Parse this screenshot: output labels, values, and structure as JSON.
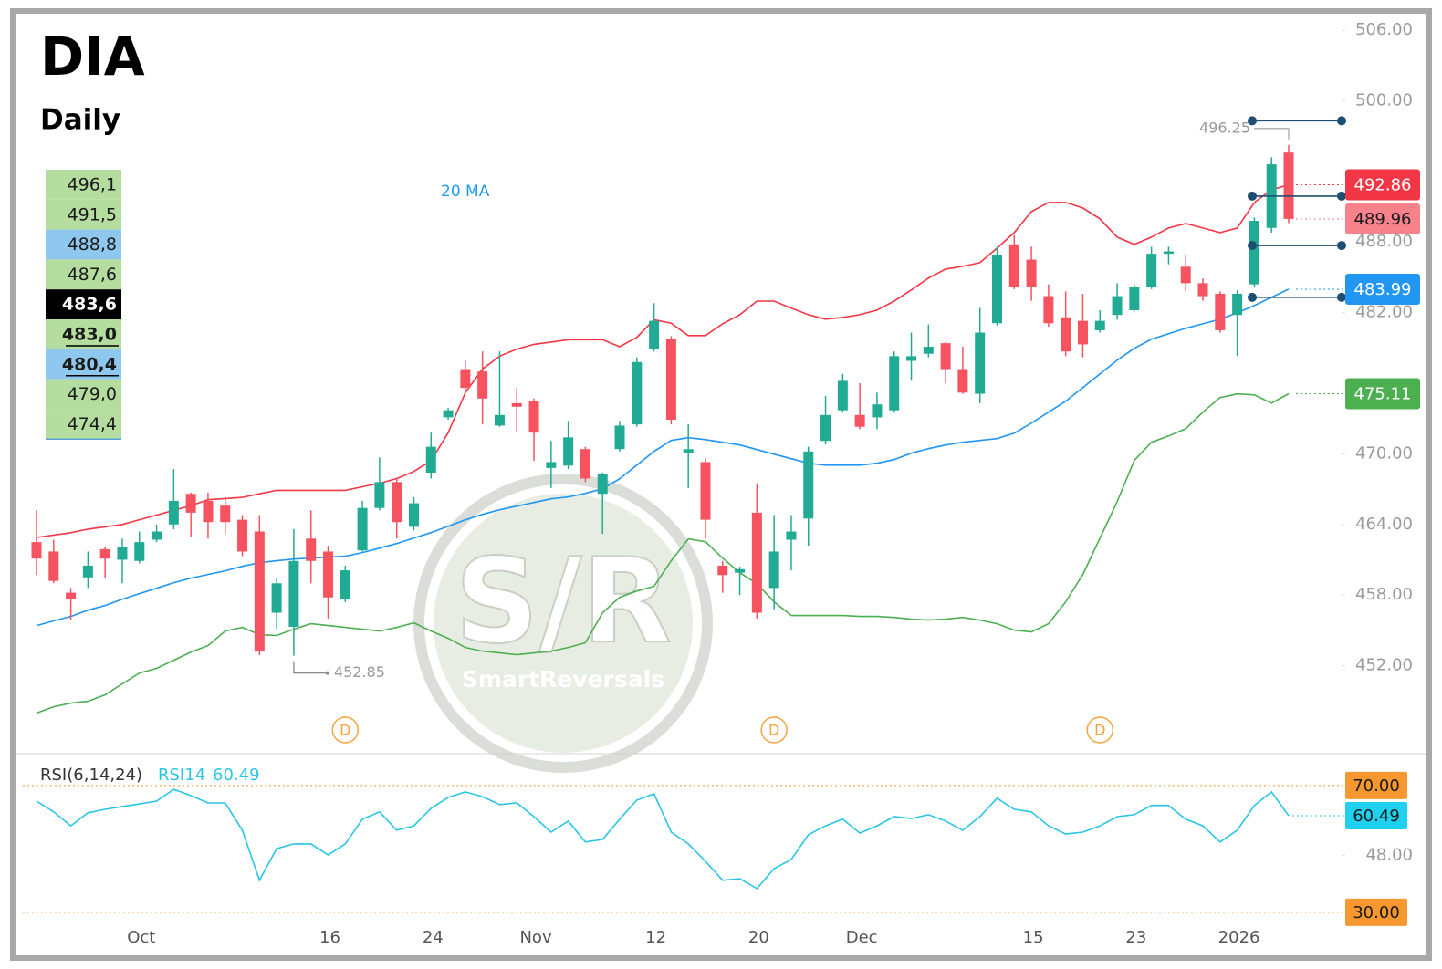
{
  "chart_data": [
    {
      "type": "candlestick",
      "title": "DIA",
      "subtitle": "Daily",
      "up_color": "#22ab94",
      "down_color": "#f7525f",
      "open": [
        462.5,
        461.7,
        458.2,
        459.5,
        461.9,
        461.0,
        460.9,
        462.7,
        464.0,
        466.6,
        466.0,
        465.6,
        464.4,
        463.4,
        456.5,
        455.3,
        462.8,
        461.7,
        457.7,
        461.8,
        465.4,
        467.6,
        463.8,
        468.4,
        473.1,
        477.2,
        477.0,
        472.4,
        474.3,
        474.5,
        468.8,
        469.0,
        470.4,
        466.6,
        470.4,
        472.5,
        478.9,
        479.8,
        470.1,
        469.3,
        460.5,
        459.9,
        465.0,
        458.6,
        462.7,
        464.5,
        471.1,
        473.7,
        473.3,
        473.1,
        473.7,
        477.9,
        478.5,
        479.4,
        477.2,
        475.1,
        481.1,
        487.8,
        486.5,
        483.4,
        481.6,
        481.3,
        480.5,
        481.8,
        482.2,
        484.2,
        487.0,
        485.9,
        484.5,
        483.6,
        481.8,
        484.4,
        489.2,
        495.6
      ],
      "high": [
        465.2,
        462.7,
        458.6,
        461.7,
        462.1,
        462.8,
        463.4,
        464.0,
        468.7,
        466.7,
        466.7,
        466.3,
        464.8,
        464.8,
        459.4,
        463.6,
        465.2,
        462.2,
        460.5,
        466.0,
        469.7,
        467.9,
        466.3,
        471.8,
        473.9,
        477.9,
        478.7,
        478.7,
        475.6,
        474.7,
        471.1,
        472.8,
        470.6,
        468.4,
        472.8,
        478.2,
        482.8,
        480.0,
        472.5,
        469.6,
        460.9,
        460.4,
        467.5,
        464.8,
        464.8,
        470.6,
        474.9,
        476.8,
        476.0,
        475.2,
        478.7,
        480.3,
        481.0,
        479.5,
        479.1,
        482.4,
        487.6,
        488.6,
        487.6,
        484.4,
        483.8,
        483.6,
        482.2,
        484.5,
        484.4,
        487.6,
        487.6,
        486.9,
        484.9,
        483.8,
        483.9,
        490.1,
        495.2,
        496.25
      ],
      "low": [
        459.7,
        459.0,
        455.9,
        458.6,
        459.4,
        459.0,
        460.7,
        462.5,
        463.6,
        462.9,
        462.8,
        463.2,
        461.3,
        452.9,
        455.1,
        452.85,
        459.0,
        456.0,
        457.4,
        461.7,
        465.2,
        462.8,
        463.5,
        467.9,
        472.9,
        475.2,
        472.5,
        472.3,
        471.8,
        469.4,
        467.1,
        468.7,
        467.6,
        463.2,
        470.2,
        472.3,
        478.7,
        472.5,
        467.1,
        462.8,
        458.2,
        458.0,
        456.0,
        456.8,
        460.1,
        462.2,
        470.8,
        473.5,
        472.1,
        472.1,
        473.5,
        476.2,
        478.2,
        476.0,
        475.1,
        474.3,
        480.9,
        484.0,
        483.0,
        480.8,
        478.3,
        478.2,
        480.3,
        481.4,
        482.1,
        484.0,
        486.1,
        483.8,
        483.0,
        480.3,
        478.3,
        484.2,
        488.8,
        489.6
      ],
      "close": [
        461.1,
        459.2,
        457.7,
        460.5,
        461.1,
        462.1,
        462.5,
        463.4,
        466.0,
        465.0,
        464.2,
        464.2,
        461.7,
        453.2,
        459.0,
        460.9,
        460.9,
        457.8,
        460.1,
        465.4,
        467.6,
        464.2,
        465.8,
        470.6,
        473.7,
        475.6,
        474.7,
        473.3,
        474.0,
        471.8,
        469.3,
        471.4,
        467.9,
        468.3,
        472.4,
        477.8,
        481.3,
        472.9,
        470.4,
        464.4,
        459.7,
        460.2,
        456.5,
        461.7,
        463.4,
        470.2,
        473.3,
        476.2,
        472.3,
        474.2,
        478.3,
        478.3,
        479.1,
        477.2,
        475.2,
        480.3,
        486.9,
        484.2,
        484.2,
        481.1,
        478.7,
        479.3,
        481.3,
        483.4,
        484.2,
        487.0,
        487.2,
        484.5,
        483.4,
        480.5,
        483.6,
        489.8,
        494.6,
        489.96
      ],
      "close_badge": {
        "color": "#f7828c",
        "text_color": "#1a1a1a"
      },
      "series": [
        {
          "name": "20 MA",
          "color": "#2196f3",
          "badge_text_color": "#ffffff",
          "values": [
            455.41,
            455.8,
            456.18,
            456.72,
            457.11,
            457.65,
            458.12,
            458.58,
            459.05,
            459.44,
            459.75,
            460.06,
            460.44,
            460.75,
            460.91,
            461.06,
            461.14,
            461.22,
            461.3,
            461.61,
            461.99,
            462.38,
            462.85,
            463.31,
            463.85,
            464.39,
            464.86,
            465.25,
            465.56,
            465.87,
            466.18,
            466.33,
            466.64,
            467.03,
            467.88,
            469.04,
            470.21,
            471.14,
            471.37,
            471.21,
            470.98,
            470.75,
            470.36,
            469.97,
            469.59,
            469.2,
            469.04,
            469.04,
            469.04,
            469.2,
            469.51,
            470.05,
            470.44,
            470.75,
            470.98,
            471.14,
            471.29,
            471.75,
            472.61,
            473.54,
            474.47,
            475.63,
            476.79,
            477.95,
            478.96,
            479.74,
            480.2,
            480.67,
            481.05,
            481.44,
            481.98,
            482.6,
            483.3,
            483.99
          ]
        },
        {
          "color": "#f23645",
          "badge_text_color": "#ffffff",
          "values": [
            462.9,
            463.1,
            463.3,
            463.6,
            463.8,
            464.0,
            464.4,
            464.8,
            465.2,
            465.6,
            466.1,
            466.2,
            466.3,
            466.6,
            466.9,
            466.9,
            466.9,
            466.9,
            466.9,
            467.2,
            467.5,
            467.9,
            468.5,
            469.4,
            471.8,
            475.2,
            477.2,
            478.3,
            478.9,
            479.3,
            479.5,
            479.7,
            479.7,
            479.7,
            479.1,
            479.9,
            481.4,
            481.1,
            480.05,
            480.05,
            481.05,
            481.82,
            482.98,
            482.98,
            482.37,
            481.82,
            481.44,
            481.59,
            481.82,
            482.21,
            482.98,
            483.92,
            484.93,
            485.7,
            485.93,
            486.24,
            487.48,
            488.8,
            490.58,
            491.36,
            491.36,
            490.89,
            489.96,
            488.41,
            487.79,
            488.41,
            489.19,
            489.57,
            489.19,
            488.8,
            489.19,
            491.36,
            492.44,
            492.86
          ]
        },
        {
          "color": "#4caf50",
          "badge_text_color": "#ffffff",
          "values": [
            447.97,
            448.51,
            448.82,
            448.97,
            449.52,
            450.45,
            451.38,
            451.77,
            452.46,
            453.16,
            453.7,
            454.94,
            455.25,
            454.63,
            454.56,
            455.1,
            455.56,
            455.41,
            455.25,
            455.1,
            454.94,
            455.25,
            455.64,
            454.94,
            454.32,
            453.55,
            453.24,
            453.08,
            452.93,
            453.08,
            453.24,
            453.55,
            453.94,
            456.49,
            457.81,
            458.35,
            458.74,
            460.91,
            462.77,
            462.53,
            461.14,
            459.9,
            458.97,
            457.42,
            456.26,
            456.26,
            456.26,
            456.26,
            456.18,
            456.18,
            456.1,
            455.95,
            455.87,
            455.95,
            456.1,
            455.87,
            455.56,
            455.02,
            454.87,
            455.56,
            457.42,
            459.75,
            462.85,
            465.94,
            469.43,
            470.98,
            471.52,
            472.14,
            473.54,
            474.78,
            475.09,
            475.01,
            474.31,
            475.11
          ]
        }
      ],
      "ylim": [
        444.6,
        507.4
      ],
      "yticks": [
        {
          "value": 506,
          "label": "506.00"
        },
        {
          "value": 500,
          "label": "500.00"
        },
        {
          "value": 488,
          "label": "488.00"
        },
        {
          "value": 482,
          "label": "482.00"
        },
        {
          "value": 470,
          "label": "470.00"
        },
        {
          "value": 464,
          "label": "464.00"
        },
        {
          "value": 458,
          "label": "458.00"
        },
        {
          "value": 452,
          "label": "452.00"
        }
      ],
      "level_lines": [
        498.3,
        491.9,
        487.7,
        483.3
      ],
      "level_line_color": "#1d4f73",
      "dividends": [
        {
          "label": "D",
          "index": 18
        },
        {
          "label": "D",
          "index": 43
        },
        {
          "label": "D",
          "index": 62
        }
      ],
      "levels": [
        {
          "label": "496,1",
          "bg": "#b5dd9f"
        },
        {
          "label": "491,5",
          "bg": "#b5dd9f"
        },
        {
          "label": "488,8",
          "bg": "#8ec8ee"
        },
        {
          "label": "487,6",
          "bg": "#b5dd9f"
        },
        {
          "label": "483,6",
          "bg": "#000000",
          "fg": "#ffffff",
          "bold": true
        },
        {
          "label": "483,0",
          "bg": "#b5dd9f",
          "bold": true,
          "underline": true
        },
        {
          "label": "480,4",
          "bg": "#8ec8ee",
          "bold": true,
          "underline": true
        },
        {
          "label": "479,0",
          "bg": "#b5dd9f"
        },
        {
          "label": "474,4",
          "bg": "#b5dd9f"
        }
      ],
      "watermark": {
        "logo": "S/R",
        "name": "SmartReversals"
      }
    },
    {
      "type": "line",
      "title": "RSI(6,14,24)",
      "categories": [
        null,
        null,
        null,
        null,
        null,
        null,
        "Oct",
        null,
        null,
        null,
        null,
        null,
        null,
        null,
        null,
        null,
        null,
        "16",
        null,
        null,
        null,
        null,
        null,
        "24",
        null,
        null,
        null,
        null,
        null,
        "Nov",
        null,
        null,
        null,
        null,
        null,
        null,
        "12",
        null,
        null,
        null,
        null,
        null,
        "20",
        null,
        null,
        null,
        null,
        null,
        "Dec",
        null,
        null,
        null,
        null,
        null,
        null,
        null,
        null,
        null,
        "15",
        null,
        null,
        null,
        null,
        null,
        "23",
        null,
        null,
        null,
        null,
        null,
        "2026",
        null,
        null,
        null
      ],
      "series": [
        {
          "name": "RSI14",
          "color": "#29c5e6",
          "badge_color": "#1fd0ef",
          "badge_text_color": "#1a1a1a",
          "values": [
            65.1,
            61.7,
            57.3,
            61.4,
            62.5,
            63.4,
            64.2,
            65.1,
            68.8,
            66.8,
            64.5,
            64.5,
            55.9,
            40.1,
            50.1,
            51.6,
            51.6,
            48.1,
            51.6,
            59.4,
            61.7,
            55.9,
            57.3,
            62.8,
            66.3,
            68.0,
            66.5,
            64.0,
            64.5,
            60.2,
            55.3,
            58.8,
            52.2,
            53.0,
            59.4,
            65.4,
            67.4,
            55.3,
            51.6,
            46.1,
            40.1,
            40.6,
            37.5,
            43.8,
            46.7,
            54.5,
            57.3,
            59.4,
            55.0,
            57.3,
            60.2,
            59.6,
            60.8,
            58.8,
            55.9,
            60.2,
            66.0,
            62.5,
            61.7,
            57.3,
            54.7,
            55.3,
            57.3,
            60.2,
            60.8,
            63.7,
            63.7,
            59.4,
            57.3,
            52.2,
            55.9,
            63.7,
            68.0,
            60.49
          ]
        }
      ],
      "ylim": [
        27.1,
        78.9
      ],
      "yticks": [
        {
          "value": 48,
          "label": "48.00"
        }
      ],
      "levels": [
        {
          "value": 70,
          "label": "70.00"
        },
        {
          "value": 30,
          "label": "30.00"
        }
      ],
      "level_color": "#f7972f"
    }
  ]
}
